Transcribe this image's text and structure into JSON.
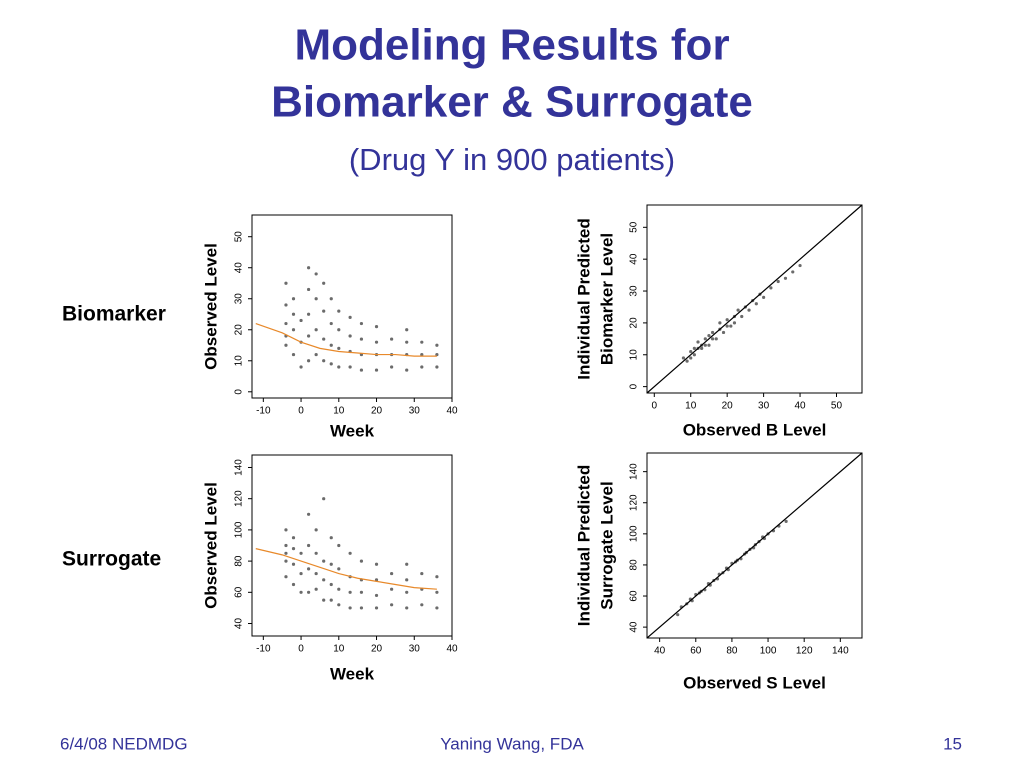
{
  "slide": {
    "title": [
      "Modeling Results for",
      "Biomarker & Surrogate"
    ],
    "subtitle": "(Drug Y in 900 patients)",
    "row_labels": [
      "Biomarker",
      "Surrogate"
    ],
    "footer": {
      "left": "6/4/08 NEDMDG",
      "center": "Yaning Wang, FDA",
      "right": "15"
    }
  },
  "chart_data": [
    {
      "type": "scatter",
      "xlabel": "Week",
      "ylabel": [
        "Observed Level"
      ],
      "xlim": [
        -13,
        40
      ],
      "xticks": [
        -10,
        0,
        10,
        20,
        30,
        40
      ],
      "ylim": [
        -2,
        57
      ],
      "yticks": [
        0,
        10,
        20,
        30,
        40,
        50
      ],
      "series": [
        {
          "color": "#6b6b6b",
          "x": [
            -4,
            -4,
            -4,
            -4,
            -4,
            -2,
            -2,
            -2,
            -2,
            0,
            0,
            0,
            2,
            2,
            2,
            2,
            2,
            4,
            4,
            4,
            4,
            6,
            6,
            6,
            6,
            8,
            8,
            8,
            8,
            10,
            10,
            10,
            10,
            13,
            13,
            13,
            13,
            16,
            16,
            16,
            16,
            20,
            20,
            20,
            20,
            24,
            24,
            24,
            28,
            28,
            28,
            28,
            32,
            32,
            32,
            36,
            36,
            36
          ],
          "y": [
            15,
            22,
            28,
            35,
            18,
            12,
            20,
            25,
            30,
            16,
            23,
            8,
            10,
            18,
            33,
            40,
            25,
            12,
            20,
            30,
            38,
            10,
            17,
            26,
            35,
            9,
            15,
            22,
            30,
            8,
            14,
            20,
            26,
            8,
            13,
            18,
            24,
            7,
            12,
            17,
            22,
            7,
            12,
            16,
            21,
            8,
            12,
            17,
            7,
            12,
            16,
            20,
            8,
            12,
            16,
            8,
            12,
            15
          ]
        }
      ],
      "lines": [
        {
          "color": "#e8892a",
          "x": [
            -12,
            -5,
            0,
            5,
            10,
            15,
            20,
            25,
            30,
            36
          ],
          "y": [
            22,
            19,
            16,
            14,
            13,
            12.5,
            12,
            12,
            11.5,
            11.5
          ]
        }
      ]
    },
    {
      "type": "scatter",
      "xlabel": "Observed B Level",
      "ylabel": [
        "Individual Predicted",
        "Biomarker Level"
      ],
      "xlim": [
        -2,
        57
      ],
      "xticks": [
        0,
        10,
        20,
        30,
        40,
        50
      ],
      "ylim": [
        -2,
        57
      ],
      "yticks": [
        0,
        10,
        20,
        30,
        40,
        50
      ],
      "series": [
        {
          "color": "#6b6b6b",
          "x": [
            8,
            9,
            10,
            11,
            12,
            12,
            13,
            14,
            15,
            15,
            16,
            17,
            18,
            18,
            19,
            20,
            21,
            22,
            22,
            23,
            24,
            25,
            26,
            27,
            28,
            29,
            30,
            32,
            34,
            36,
            38,
            40,
            10,
            13,
            16,
            20,
            11,
            14
          ],
          "y": [
            9,
            8,
            11,
            10,
            12,
            14,
            12,
            15,
            13,
            16,
            17,
            15,
            18,
            20,
            17,
            21,
            19,
            22,
            20,
            24,
            22,
            25,
            24,
            27,
            26,
            29,
            28,
            31,
            33,
            34,
            36,
            38,
            9,
            13,
            15,
            19,
            12,
            13
          ]
        }
      ],
      "lines": [
        {
          "color": "#000000",
          "x": [
            -2,
            57
          ],
          "y": [
            -2,
            57
          ]
        }
      ]
    },
    {
      "type": "scatter",
      "xlabel": "Week",
      "ylabel": [
        "Observed Level"
      ],
      "xlim": [
        -13,
        40
      ],
      "xticks": [
        -10,
        0,
        10,
        20,
        30,
        40
      ],
      "ylim": [
        32,
        148
      ],
      "yticks": [
        40,
        60,
        80,
        100,
        120,
        140
      ],
      "series": [
        {
          "color": "#6b6b6b",
          "x": [
            -4,
            -4,
            -4,
            -4,
            -4,
            -2,
            -2,
            -2,
            -2,
            0,
            0,
            0,
            2,
            2,
            2,
            2,
            4,
            4,
            4,
            4,
            6,
            6,
            6,
            6,
            8,
            8,
            8,
            8,
            10,
            10,
            10,
            10,
            13,
            13,
            13,
            13,
            16,
            16,
            16,
            16,
            20,
            20,
            20,
            20,
            24,
            24,
            24,
            28,
            28,
            28,
            28,
            32,
            32,
            32,
            36,
            36,
            36
          ],
          "y": [
            70,
            80,
            90,
            100,
            85,
            65,
            78,
            88,
            95,
            72,
            85,
            60,
            60,
            75,
            90,
            110,
            62,
            72,
            85,
            100,
            55,
            68,
            80,
            120,
            55,
            65,
            78,
            95,
            52,
            62,
            75,
            90,
            50,
            60,
            70,
            85,
            50,
            60,
            68,
            80,
            50,
            58,
            68,
            78,
            52,
            62,
            72,
            50,
            60,
            68,
            78,
            52,
            62,
            72,
            50,
            60,
            70
          ]
        }
      ],
      "lines": [
        {
          "color": "#e8892a",
          "x": [
            -12,
            -5,
            0,
            5,
            10,
            15,
            20,
            25,
            30,
            36
          ],
          "y": [
            88,
            84,
            80,
            76,
            72,
            69,
            67,
            65,
            63,
            62
          ]
        }
      ]
    },
    {
      "type": "scatter",
      "xlabel": "Observed S Level",
      "ylabel": [
        "Individual Predicted",
        "Surrogate Level"
      ],
      "xlim": [
        33,
        152
      ],
      "xticks": [
        40,
        60,
        80,
        100,
        120,
        140
      ],
      "ylim": [
        33,
        152
      ],
      "yticks": [
        40,
        60,
        80,
        100,
        120,
        140
      ],
      "series": [
        {
          "color": "#6b6b6b",
          "x": [
            50,
            52,
            55,
            58,
            60,
            62,
            65,
            67,
            70,
            72,
            75,
            78,
            80,
            82,
            85,
            88,
            90,
            92,
            95,
            98,
            100,
            103,
            106,
            110,
            57,
            63,
            68,
            73,
            77,
            83,
            87,
            93,
            97
          ],
          "y": [
            48,
            53,
            55,
            57,
            61,
            62,
            64,
            68,
            70,
            71,
            75,
            77,
            81,
            82,
            84,
            88,
            90,
            91,
            95,
            97,
            100,
            102,
            105,
            108,
            58,
            63,
            67,
            74,
            78,
            83,
            87,
            93,
            98
          ]
        }
      ],
      "lines": [
        {
          "color": "#000000",
          "x": [
            33,
            152
          ],
          "y": [
            33,
            152
          ]
        }
      ]
    }
  ]
}
